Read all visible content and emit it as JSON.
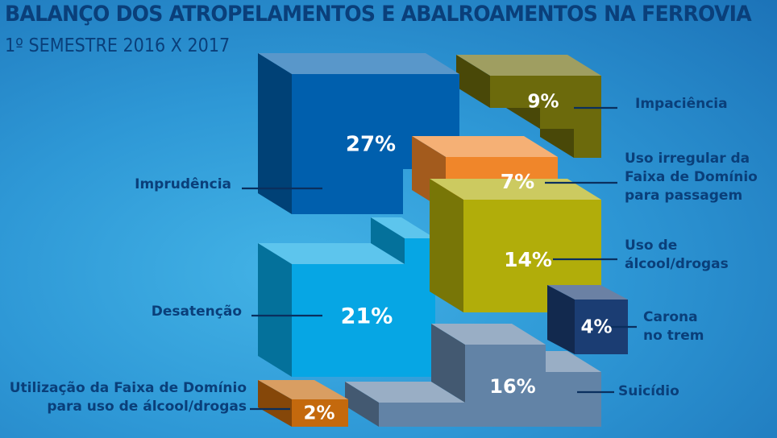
{
  "chart_data": {
    "type": "bar",
    "title": "BALANÇO DOS ATROPELAMENTOS E ABALROAMENTOS NA FERROVIA",
    "subtitle": "1º SEMESTRE 2016 X 2017",
    "categories": [
      "Imprudência",
      "Impaciência",
      "Uso irregular da Faixa de Domínio para passagem",
      "Uso de álcool/drogas",
      "Desatenção",
      "Carona no trem",
      "Suicídio",
      "Utilização da Faixa de Domínio para uso de álcool/drogas"
    ],
    "values": [
      27,
      9,
      7,
      14,
      21,
      4,
      16,
      2
    ],
    "value_labels": [
      "27%",
      "9%",
      "7%",
      "14%",
      "21%",
      "4%",
      "16%",
      "2%"
    ],
    "label_lines": [
      [
        "Imprudência"
      ],
      [
        "Impaciência"
      ],
      [
        "Uso irregular da",
        "Faixa de Domínio",
        "para passagem"
      ],
      [
        "Uso de",
        "álcool/drogas"
      ],
      [
        "Desatenção"
      ],
      [
        "Carona",
        "no trem"
      ],
      [
        "Suicídio"
      ],
      [
        "Utilização da Faixa de Domínio",
        "para uso de álcool/drogas"
      ]
    ],
    "unit": "%",
    "colors": [
      "#005fad",
      "#6c6a0c",
      "#f0862a",
      "#b1ad0a",
      "#06a6e4",
      "#1b3d73",
      "#6283a6",
      "#c4690d"
    ]
  }
}
